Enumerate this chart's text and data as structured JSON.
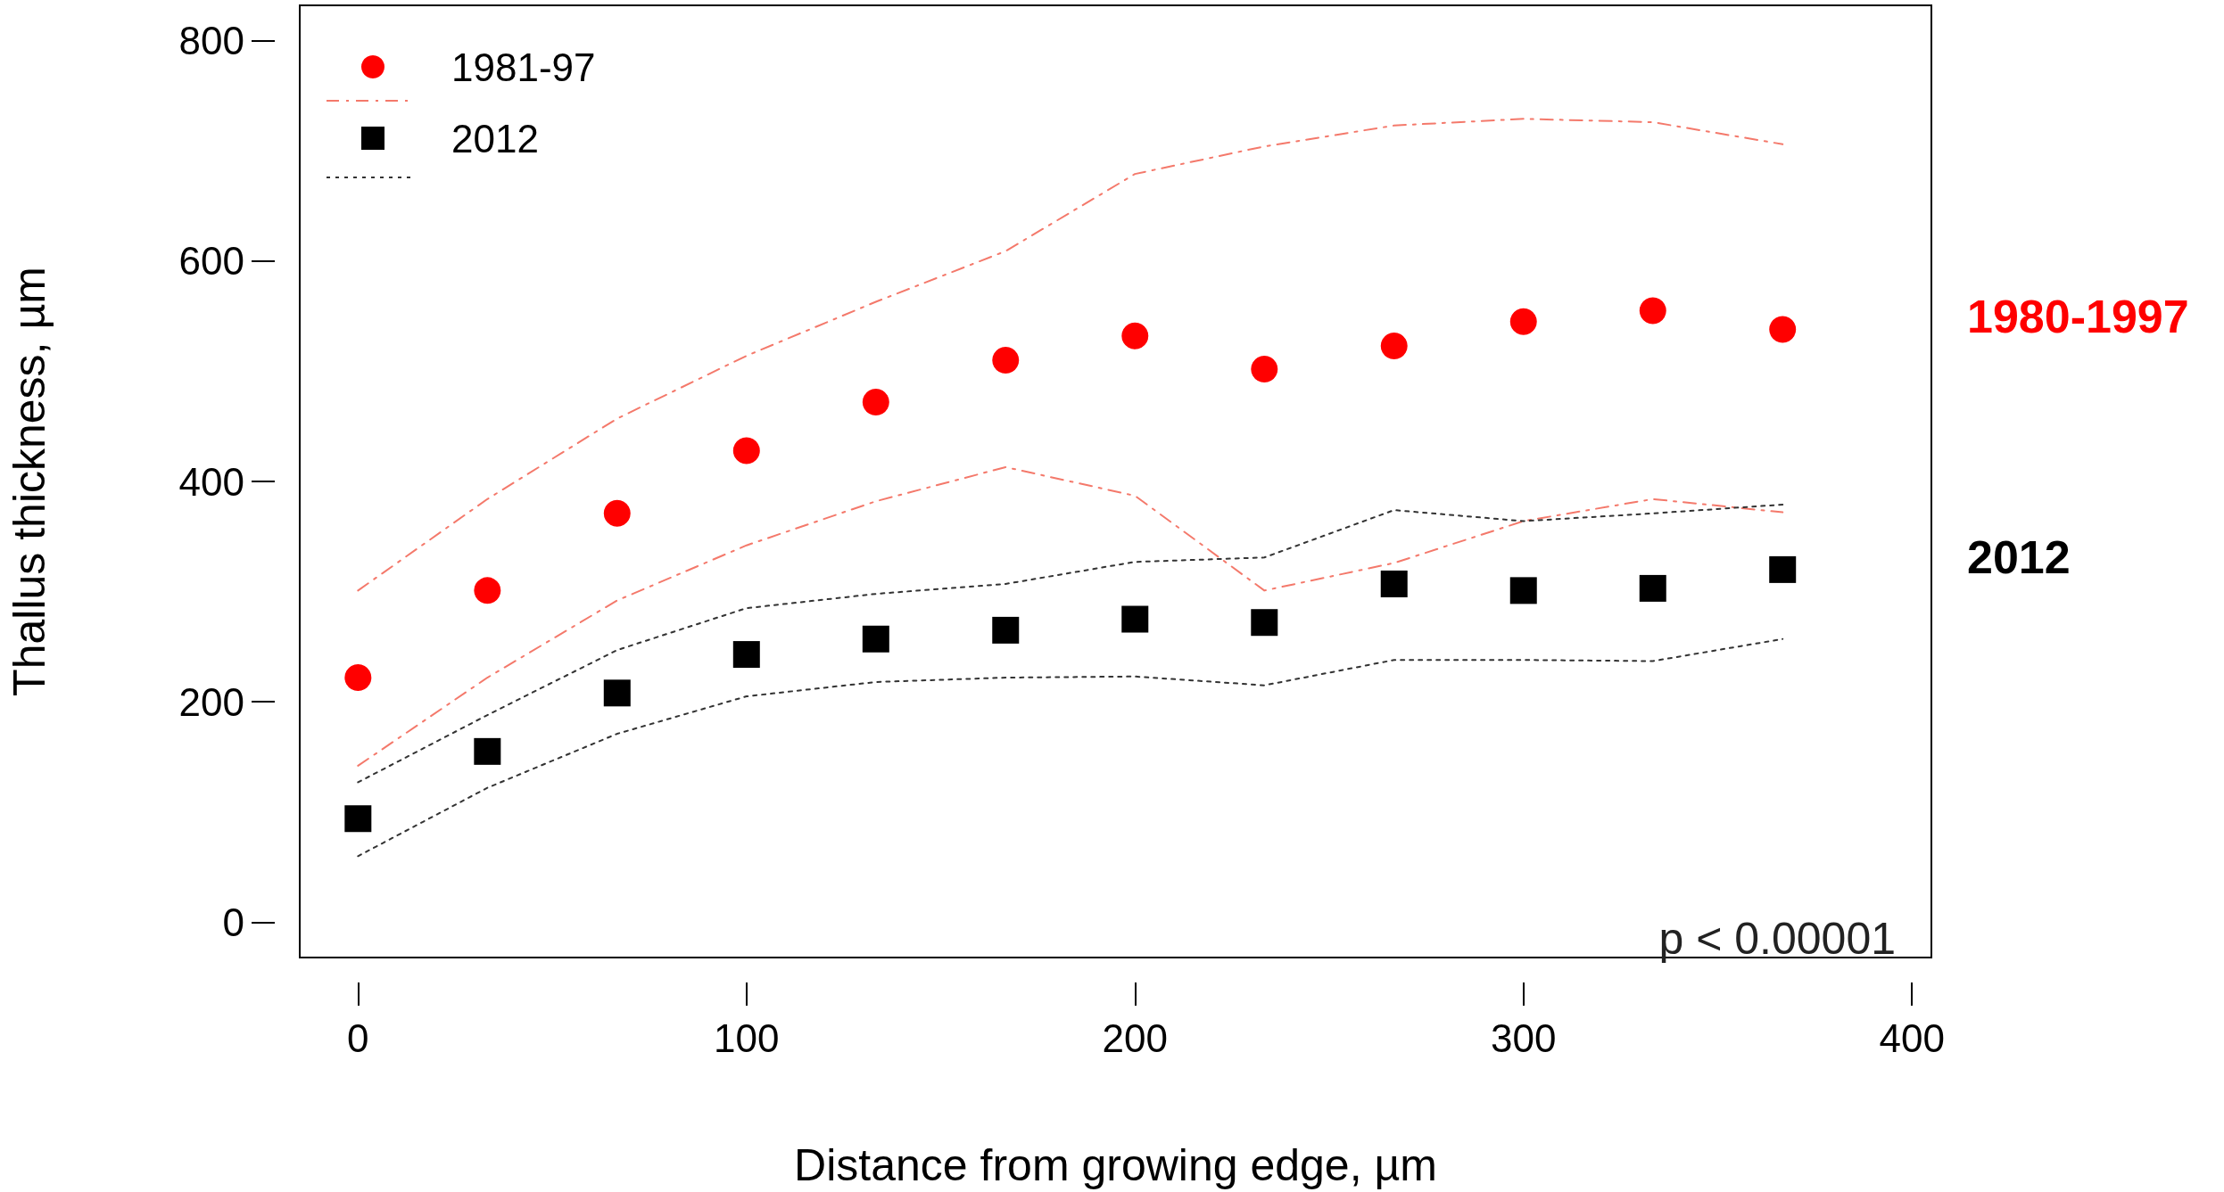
{
  "chart_data": {
    "type": "scatter",
    "xlabel": "Distance from growing edge, µm",
    "ylabel": "Thallus thickness, µm",
    "x": [
      0,
      33.3,
      66.7,
      100,
      133.3,
      166.7,
      200,
      233.3,
      266.7,
      300,
      333.3,
      366.7
    ],
    "series": [
      {
        "name": "1981-97",
        "color": "#ff0000",
        "marker": "circle",
        "values": [
          222,
          301,
          371,
          428,
          472,
          510,
          532,
          502,
          523,
          545,
          555,
          538
        ]
      },
      {
        "name": "2012",
        "color": "#000000",
        "marker": "square",
        "values": [
          94,
          155,
          208,
          243,
          257,
          265,
          275,
          272,
          307,
          301,
          303,
          320
        ]
      },
      {
        "type": "line",
        "color": "#f4796b",
        "line_style": "dashed",
        "marker": "none",
        "values": [
          142,
          222,
          292,
          342,
          382,
          413,
          387,
          301,
          326,
          364,
          384,
          372
        ]
      },
      {
        "type": "line",
        "color": "#f4796b",
        "line_style": "dashed",
        "marker": "none",
        "values": [
          301,
          384,
          457,
          514,
          563,
          609,
          679,
          704,
          723,
          729,
          726,
          706
        ]
      },
      {
        "type": "line",
        "color": "#333333",
        "line_style": "dotted",
        "marker": "none",
        "values": [
          60,
          122,
          171,
          205,
          218,
          222,
          223,
          215,
          238,
          238,
          237,
          257
        ]
      },
      {
        "type": "line",
        "color": "#333333",
        "line_style": "dotted",
        "marker": "none",
        "values": [
          127,
          188,
          247,
          285,
          298,
          307,
          327,
          331,
          374,
          364,
          371,
          379
        ]
      }
    ],
    "xlim": [
      -15,
      405
    ],
    "xticks": [
      0,
      100,
      200,
      300,
      400
    ],
    "ylim": [
      -32,
      832
    ],
    "yticks": [
      0,
      200,
      400,
      600,
      800
    ],
    "grid": false,
    "legend": "top left",
    "annotations": [
      "p < 0.00001",
      "1980-1997",
      "2012"
    ]
  }
}
